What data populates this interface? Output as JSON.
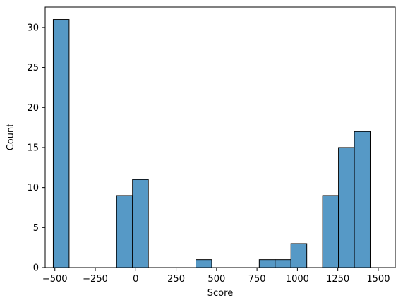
{
  "chart_data": {
    "type": "bar",
    "subtype": "histogram",
    "xlabel": "Score",
    "ylabel": "Count",
    "xlim": [
      -560,
      1605
    ],
    "ylim": [
      0,
      32.55
    ],
    "bin_width": 98,
    "bins": [
      {
        "x0": -510,
        "x1": -412,
        "count": 31
      },
      {
        "x0": -412,
        "x1": -314,
        "count": 0
      },
      {
        "x0": -314,
        "x1": -216,
        "count": 0
      },
      {
        "x0": -216,
        "x1": -118,
        "count": 0
      },
      {
        "x0": -118,
        "x1": -20,
        "count": 9
      },
      {
        "x0": -20,
        "x1": 78,
        "count": 11
      },
      {
        "x0": 78,
        "x1": 176,
        "count": 0
      },
      {
        "x0": 176,
        "x1": 274,
        "count": 0
      },
      {
        "x0": 274,
        "x1": 372,
        "count": 0
      },
      {
        "x0": 372,
        "x1": 470,
        "count": 1
      },
      {
        "x0": 470,
        "x1": 568,
        "count": 0
      },
      {
        "x0": 568,
        "x1": 666,
        "count": 0
      },
      {
        "x0": 666,
        "x1": 764,
        "count": 0
      },
      {
        "x0": 764,
        "x1": 862,
        "count": 1
      },
      {
        "x0": 862,
        "x1": 960,
        "count": 1
      },
      {
        "x0": 960,
        "x1": 1058,
        "count": 3
      },
      {
        "x0": 1058,
        "x1": 1156,
        "count": 0
      },
      {
        "x0": 1156,
        "x1": 1254,
        "count": 9
      },
      {
        "x0": 1254,
        "x1": 1352,
        "count": 15
      },
      {
        "x0": 1352,
        "x1": 1450,
        "count": 17
      }
    ],
    "xticks": [
      -500,
      -250,
      0,
      250,
      500,
      750,
      1000,
      1250,
      1500
    ],
    "xtick_labels": [
      "−500",
      "−250",
      "0",
      "250",
      "500",
      "750",
      "1000",
      "1250",
      "1500"
    ],
    "yticks": [
      0,
      5,
      10,
      15,
      20,
      25,
      30
    ],
    "ytick_labels": [
      "0",
      "5",
      "10",
      "15",
      "20",
      "25",
      "30"
    ],
    "grid": false,
    "bar_color": "#5699c6",
    "edge_color": "#000000"
  }
}
